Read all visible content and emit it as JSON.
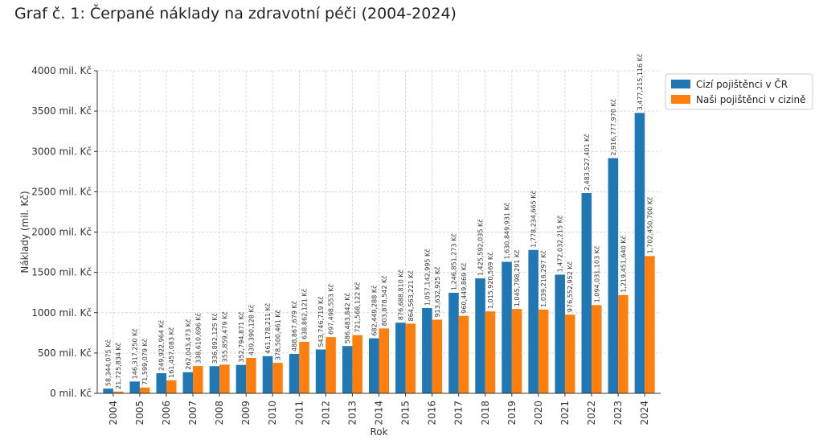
{
  "page": {
    "title": "Graf č. 1: Čerpané náklady na zdravotní péči (2004-2024)"
  },
  "chart_data": {
    "type": "bar",
    "title": "",
    "xlabel": "Rok",
    "ylabel": "Náklady (mil. Kč)",
    "ylim": [
      0,
      4000
    ],
    "yticks": [
      0,
      500,
      1000,
      1500,
      2000,
      2500,
      3000,
      3500,
      4000
    ],
    "ytick_suffix": " mil. Kč",
    "grid": true,
    "legend_position": "top-right",
    "categories": [
      "2004",
      "2005",
      "2006",
      "2007",
      "2008",
      "2009",
      "2010",
      "2011",
      "2012",
      "2013",
      "2014",
      "2015",
      "2016",
      "2017",
      "2018",
      "2019",
      "2020",
      "2021",
      "2022",
      "2023",
      "2024"
    ],
    "series": [
      {
        "name": "Cizí pojištěnci v ČR",
        "color": "#1f77b4",
        "values": [
          58.344075,
          146.31725,
          249.922964,
          262.043473,
          336.892125,
          352.794871,
          461.178211,
          488.867679,
          543.746719,
          586.483842,
          682.449288,
          876.68881,
          1057.142995,
          1246.851273,
          1425.592035,
          1630.849931,
          1778.234665,
          1472.032215,
          2483.527401,
          2916.77797,
          3477.215116
        ],
        "labels": [
          "58,344,075 Kč",
          "146,317,250 Kč",
          "249,922,964 Kč",
          "262,043,473 Kč",
          "336,892,125 Kč",
          "352,794,871 Kč",
          "461,178,211 Kč",
          "488,867,679 Kč",
          "543,746,719 Kč",
          "586,483,842 Kč",
          "682,449,288 Kč",
          "876,688,810 Kč",
          "1,057,142,995 Kč",
          "1,246,851,273 Kč",
          "1,425,592,035 Kč",
          "1,630,849,931 Kč",
          "1,778,234,665 Kč",
          "1,472,032,215 Kč",
          "2,483,527,401 Kč",
          "2,916,777,970 Kč",
          "3,477,215,116 Kč"
        ]
      },
      {
        "name": "Naši pojištěnci v cizině",
        "color": "#ff7f0e",
        "values": [
          21.725834,
          71.599079,
          161.457083,
          338.610696,
          355.859479,
          439.390128,
          378.500461,
          638.862121,
          697.498553,
          721.568122,
          803.878542,
          864.563221,
          913.632925,
          960.449869,
          1015.920569,
          1045.798291,
          1039.216297,
          976.552952,
          1094.031103,
          1219.45164,
          1702.4507
        ],
        "labels": [
          "21,725,834 Kč",
          "71,599,079 Kč",
          "161,457,083 Kč",
          "338,610,696 Kč",
          "355,859,479 Kč",
          "439,390,128 Kč",
          "378,500,461 Kč",
          "638,862,121 Kč",
          "697,498,553 Kč",
          "721,568,122 Kč",
          "803,878,542 Kč",
          "864,563,221 Kč",
          "913,632,925 Kč",
          "960,449,869 Kč",
          "1,015,920,569 Kč",
          "1,045,798,291 Kč",
          "1,039,216,297 Kč",
          "976,552,952 Kč",
          "1,094,031,103 Kč",
          "1,219,451,640 Kč",
          "1,702,450,700 Kč"
        ]
      }
    ]
  }
}
